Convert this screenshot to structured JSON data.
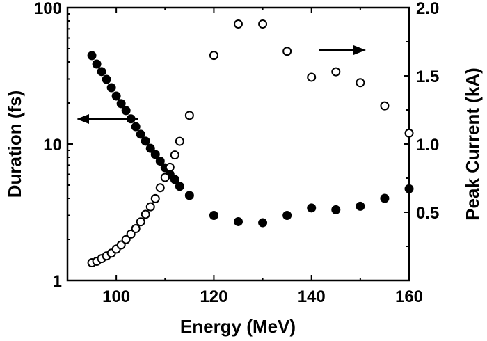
{
  "chart_data": {
    "type": "scatter",
    "xlabel": "Energy (MeV)",
    "ylabel": "Duration (fs)",
    "y2label": "Peak Current (kA)",
    "xlim": [
      90,
      160
    ],
    "ylim": [
      1,
      100
    ],
    "yscale": "log",
    "y2lim": [
      0,
      2.0
    ],
    "grid": false,
    "x_ticks": [
      "100",
      "120",
      "140",
      "160"
    ],
    "y_ticks": [
      "1",
      "10",
      "100"
    ],
    "y2_ticks": [
      "0.5",
      "1.0",
      "1.5",
      "2.0"
    ],
    "series": [
      {
        "axis": "left",
        "marker": "filled-circle",
        "x": [
          95,
          96,
          97,
          98,
          99,
          100,
          101,
          102,
          103,
          104,
          105,
          106,
          107,
          108,
          109,
          110,
          111,
          112,
          113,
          115,
          120,
          125,
          130,
          135,
          140,
          145,
          150,
          155,
          160
        ],
        "y": [
          44.5,
          38.6,
          34,
          29.8,
          25.9,
          22.5,
          19.8,
          17.6,
          15.3,
          13.4,
          11.8,
          10.5,
          9.3,
          8.4,
          7.5,
          6.7,
          6.0,
          5.5,
          4.9,
          4.2,
          3.0,
          2.7,
          2.65,
          3.0,
          3.4,
          3.3,
          3.5,
          4.0,
          4.7
        ]
      },
      {
        "axis": "right",
        "marker": "open-circle",
        "x": [
          95,
          96,
          97,
          98,
          99,
          100,
          101,
          102,
          103,
          104,
          105,
          106,
          107,
          108,
          109,
          110,
          111,
          112,
          113,
          115,
          120,
          125,
          130,
          135,
          140,
          145,
          150,
          155,
          160
        ],
        "y": [
          0.13,
          0.14,
          0.16,
          0.18,
          0.2,
          0.23,
          0.26,
          0.3,
          0.34,
          0.38,
          0.43,
          0.485,
          0.54,
          0.6,
          0.68,
          0.755,
          0.83,
          0.92,
          1.02,
          1.21,
          1.65,
          1.88,
          1.88,
          1.68,
          1.49,
          1.53,
          1.45,
          1.28,
          1.08
        ]
      }
    ]
  }
}
